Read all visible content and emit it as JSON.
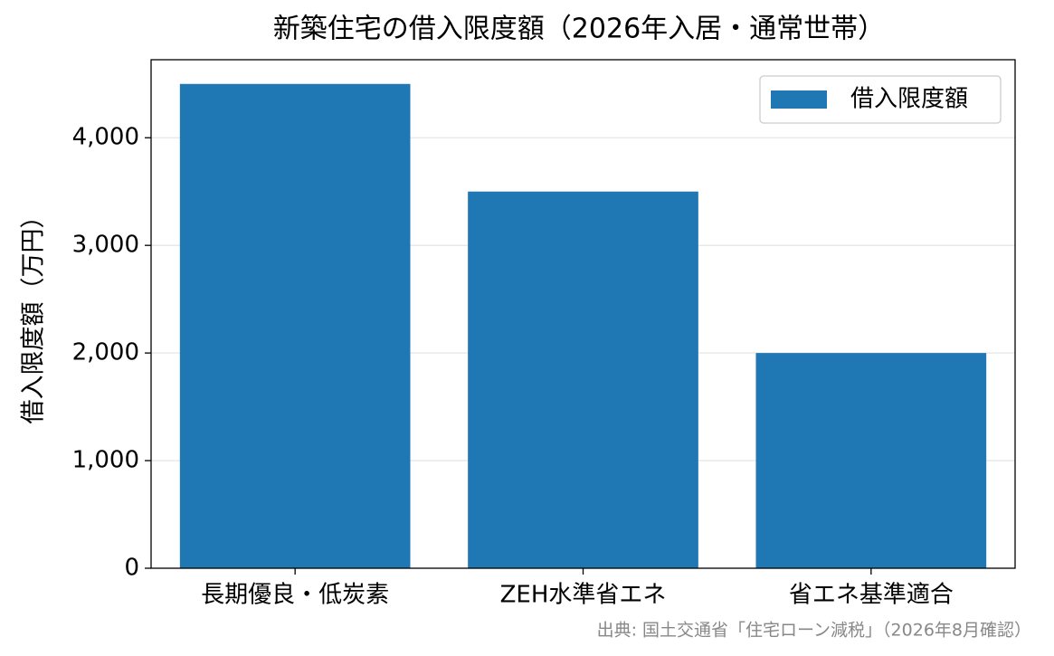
{
  "chart_data": {
    "type": "bar",
    "title": "新築住宅の借入限度額（2026年入居・通常世帯）",
    "ylabel": "借入限度額（万円）",
    "note": "出典: 国土交通省「住宅ローン減税」（2026年8月確認）",
    "categories": [
      "長期優良・低炭素",
      "ZEH水準省エネ",
      "省エネ基準適合"
    ],
    "series": [
      {
        "name": "借入限度額",
        "color": "#1f77b4",
        "values": [
          4500,
          3500,
          2000
        ]
      }
    ],
    "ylim": [
      0,
      4725
    ],
    "yticks": [
      0,
      {
        "value": 1000,
        "label": "1,000"
      },
      {
        "value": 2000,
        "label": "2,000"
      },
      {
        "value": 3000,
        "label": "3,000"
      },
      {
        "value": 4000,
        "label": "4,000"
      }
    ],
    "grid": true,
    "legend": "upper right"
  }
}
